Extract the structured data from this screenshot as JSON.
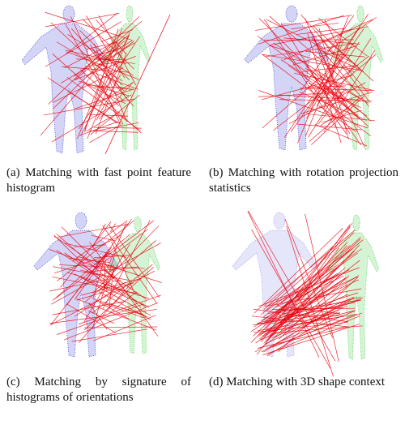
{
  "figure": {
    "subfigures": [
      {
        "caption": "(a) Matching with fast point feature histogram"
      },
      {
        "caption": "(b) Matching with rotation projection statistics"
      },
      {
        "caption": "(c) Matching by signature of histograms of orientations"
      },
      {
        "caption": "(d) Matching with 3D shape context"
      }
    ]
  }
}
